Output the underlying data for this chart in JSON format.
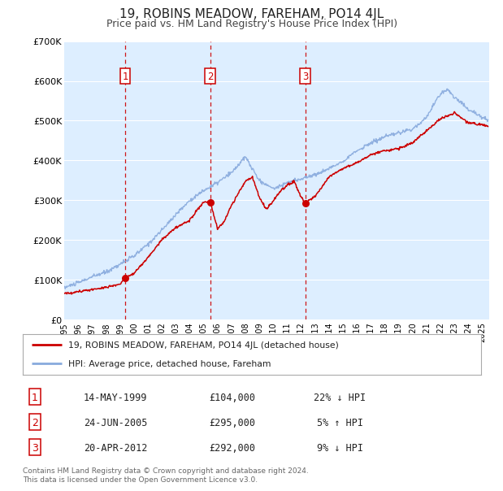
{
  "title": "19, ROBINS MEADOW, FAREHAM, PO14 4JL",
  "subtitle": "Price paid vs. HM Land Registry's House Price Index (HPI)",
  "title_fontsize": 11,
  "subtitle_fontsize": 9,
  "background_color": "#ffffff",
  "plot_bg_color": "#ddeeff",
  "grid_color": "#ffffff",
  "ylim": [
    0,
    700000
  ],
  "yticks": [
    0,
    100000,
    200000,
    300000,
    400000,
    500000,
    600000,
    700000
  ],
  "ytick_labels": [
    "£0",
    "£100K",
    "£200K",
    "£300K",
    "£400K",
    "£500K",
    "£600K",
    "£700K"
  ],
  "xlim_start": 1995.0,
  "xlim_end": 2025.5,
  "xticks": [
    1995,
    1996,
    1997,
    1998,
    1999,
    2000,
    2001,
    2002,
    2003,
    2004,
    2005,
    2006,
    2007,
    2008,
    2009,
    2010,
    2011,
    2012,
    2013,
    2014,
    2015,
    2016,
    2017,
    2018,
    2019,
    2020,
    2021,
    2022,
    2023,
    2024,
    2025
  ],
  "red_line_color": "#cc0000",
  "blue_line_color": "#88aadd",
  "sale_marker_color": "#cc0000",
  "vline_color": "#cc0000",
  "sale_points": [
    {
      "year": 1999.37,
      "value": 104000,
      "label": "1"
    },
    {
      "year": 2005.48,
      "value": 295000,
      "label": "2"
    },
    {
      "year": 2012.3,
      "value": 292000,
      "label": "3"
    }
  ],
  "legend_entries": [
    "19, ROBINS MEADOW, FAREHAM, PO14 4JL (detached house)",
    "HPI: Average price, detached house, Fareham"
  ],
  "table_rows": [
    {
      "num": "1",
      "date": "14-MAY-1999",
      "price": "£104,000",
      "pct": "22%",
      "dir": "↓",
      "rel": "HPI"
    },
    {
      "num": "2",
      "date": "24-JUN-2005",
      "price": "£295,000",
      "pct": "5%",
      "dir": "↑",
      "rel": "HPI"
    },
    {
      "num": "3",
      "date": "20-APR-2012",
      "price": "£292,000",
      "pct": "9%",
      "dir": "↓",
      "rel": "HPI"
    }
  ],
  "footer": "Contains HM Land Registry data © Crown copyright and database right 2024.\nThis data is licensed under the Open Government Licence v3.0."
}
